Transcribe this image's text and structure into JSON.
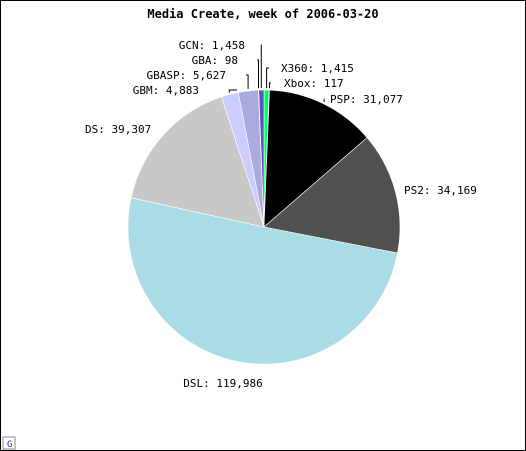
{
  "chart_data": {
    "type": "pie",
    "title": "Media Create, week of 2006-03-20",
    "slices": [
      {
        "label": "X360",
        "value_text": "1,415",
        "value": 1415,
        "color": "#00ff66"
      },
      {
        "label": "Xbox",
        "value_text": "117",
        "value": 117,
        "color": "#006600"
      },
      {
        "label": "PSP",
        "value_text": "31,077",
        "value": 31077,
        "color": "#000000"
      },
      {
        "label": "PS2",
        "value_text": "34,169",
        "value": 34169,
        "color": "#505050"
      },
      {
        "label": "DSL",
        "value_text": "119,986",
        "value": 119986,
        "color": "#aadce6"
      },
      {
        "label": "DS",
        "value_text": "39,307",
        "value": 39307,
        "color": "#c8c8c8"
      },
      {
        "label": "GBM",
        "value_text": "4,883",
        "value": 4883,
        "color": "#ccccff"
      },
      {
        "label": "GBASP",
        "value_text": "5,627",
        "value": 5627,
        "color": "#aaaadd"
      },
      {
        "label": "GBA",
        "value_text": "98",
        "value": 98,
        "color": "#8888cc"
      },
      {
        "label": "GCN",
        "value_text": "1,458",
        "value": 1458,
        "color": "#5555bb"
      }
    ]
  },
  "footer_logo": "G"
}
